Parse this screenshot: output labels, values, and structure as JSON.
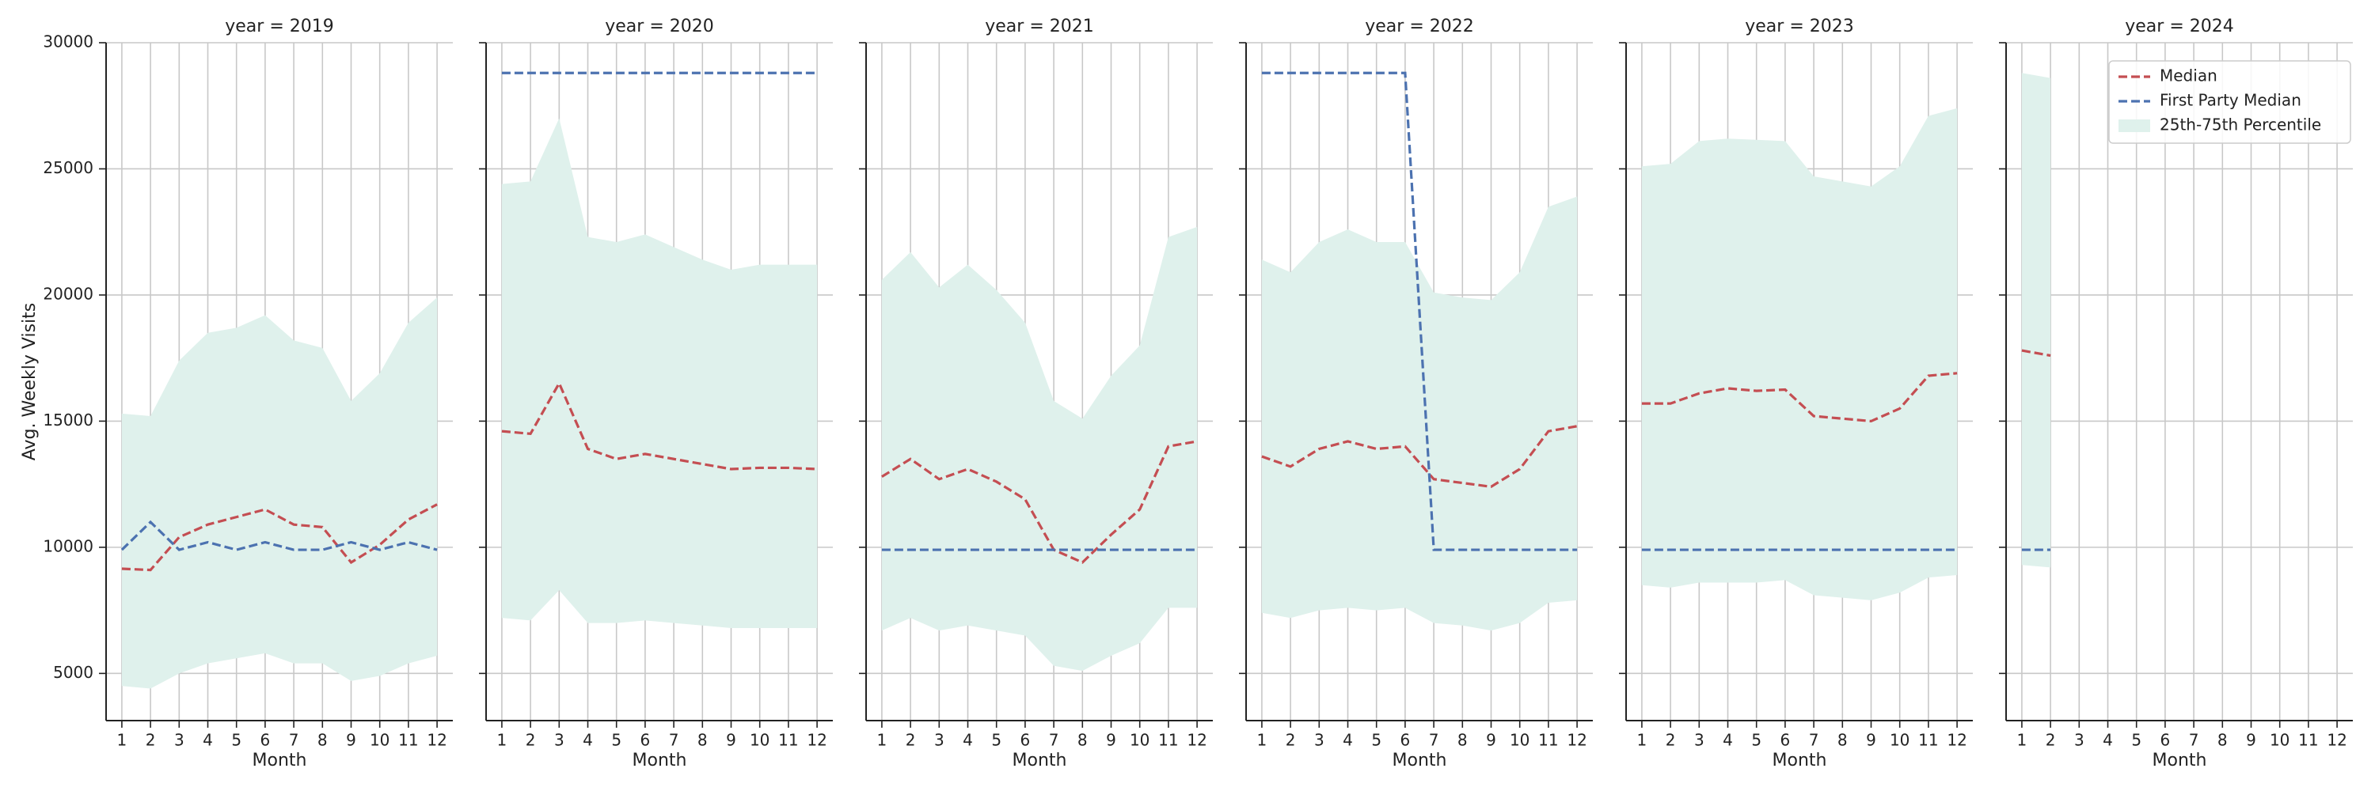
{
  "chart_data": [
    {
      "type": "line",
      "title": "year = 2019",
      "xlabel": "Month",
      "ylabel": "Avg. Weekly Visits",
      "x": [
        1,
        2,
        3,
        4,
        5,
        6,
        7,
        8,
        9,
        10,
        11,
        12
      ],
      "xlim": [
        0.45,
        12.55
      ],
      "xticks": [
        1,
        2,
        3,
        4,
        5,
        6,
        7,
        8,
        9,
        10,
        11,
        12
      ],
      "ylim": [
        3130,
        30000
      ],
      "yticks": [
        5000,
        10000,
        15000,
        20000,
        25000,
        30000
      ],
      "grid": true,
      "series": [
        {
          "color": "#c44e52",
          "linestyle": "dashed",
          "values": [
            9150,
            9100,
            10400,
            10900,
            11200,
            11500,
            10900,
            10800,
            9400,
            10100,
            11100,
            11700
          ]
        },
        {
          "color": "#4c72b0",
          "linestyle": "dashed",
          "values": [
            9900,
            11000,
            9900,
            10200,
            9900,
            10200,
            9900,
            9900,
            10200,
            9900,
            10200,
            9900
          ]
        },
        {
          "color": "#dff1ec",
          "lower": [
            4500,
            4400,
            5000,
            5400,
            5600,
            5800,
            5400,
            5400,
            4700,
            4900,
            5400,
            5700
          ],
          "upper": [
            15300,
            15200,
            17400,
            18500,
            18700,
            19200,
            18200,
            17900,
            15800,
            16900,
            18900,
            19900
          ]
        }
      ]
    },
    {
      "type": "line",
      "title": "year = 2020",
      "xlabel": "Month",
      "sharey": true,
      "x": [
        1,
        2,
        3,
        4,
        5,
        6,
        7,
        8,
        9,
        10,
        11,
        12
      ],
      "xlim": [
        0.45,
        12.55
      ],
      "xticks": [
        1,
        2,
        3,
        4,
        5,
        6,
        7,
        8,
        9,
        10,
        11,
        12
      ],
      "grid": true,
      "series": [
        {
          "color": "#c44e52",
          "linestyle": "dashed",
          "values": [
            14600,
            14500,
            16500,
            13900,
            13500,
            13700,
            13500,
            13300,
            13100,
            13150,
            13150,
            13100
          ]
        },
        {
          "color": "#4c72b0",
          "linestyle": "dashed",
          "values": [
            28800,
            28800,
            28800,
            28800,
            28800,
            28800,
            28800,
            28800,
            28800,
            28800,
            28800,
            28800
          ]
        },
        {
          "color": "#dff1ec",
          "lower": [
            7200,
            7100,
            8300,
            7000,
            7000,
            7100,
            7000,
            6900,
            6800,
            6800,
            6800,
            6800
          ],
          "upper": [
            24400,
            24500,
            27000,
            22300,
            22100,
            22400,
            21900,
            21400,
            21000,
            21200,
            21200,
            21200
          ]
        }
      ]
    },
    {
      "type": "line",
      "title": "year = 2021",
      "xlabel": "Month",
      "sharey": true,
      "x": [
        1,
        2,
        3,
        4,
        5,
        6,
        7,
        8,
        9,
        10,
        11,
        12
      ],
      "xlim": [
        0.45,
        12.55
      ],
      "xticks": [
        1,
        2,
        3,
        4,
        5,
        6,
        7,
        8,
        9,
        10,
        11,
        12
      ],
      "grid": true,
      "series": [
        {
          "color": "#c44e52",
          "linestyle": "dashed",
          "values": [
            12800,
            13500,
            12700,
            13100,
            12600,
            11900,
            9900,
            9400,
            10500,
            11500,
            14000,
            14200
          ]
        },
        {
          "color": "#4c72b0",
          "linestyle": "dashed",
          "values": [
            9900,
            9900,
            9900,
            9900,
            9900,
            9900,
            9900,
            9900,
            9900,
            9900,
            9900,
            9900
          ]
        },
        {
          "color": "#dff1ec",
          "lower": [
            6700,
            7200,
            6700,
            6900,
            6700,
            6500,
            5300,
            5100,
            5700,
            6200,
            7600,
            7600
          ],
          "upper": [
            20600,
            21700,
            20300,
            21200,
            20200,
            18900,
            15800,
            15100,
            16800,
            18000,
            22300,
            22700
          ]
        }
      ]
    },
    {
      "type": "line",
      "title": "year = 2022",
      "xlabel": "Month",
      "sharey": true,
      "x": [
        1,
        2,
        3,
        4,
        5,
        6,
        7,
        8,
        9,
        10,
        11,
        12
      ],
      "xlim": [
        0.45,
        12.55
      ],
      "xticks": [
        1,
        2,
        3,
        4,
        5,
        6,
        7,
        8,
        9,
        10,
        11,
        12
      ],
      "grid": true,
      "series": [
        {
          "color": "#c44e52",
          "linestyle": "dashed",
          "values": [
            13600,
            13200,
            13900,
            14200,
            13900,
            14000,
            12700,
            12550,
            12400,
            13100,
            14600,
            14800
          ]
        },
        {
          "color": "#4c72b0",
          "linestyle": "dashed",
          "values": [
            28800,
            28800,
            28800,
            28800,
            28800,
            28800,
            9900,
            9900,
            9900,
            9900,
            9900,
            9900
          ]
        },
        {
          "color": "#dff1ec",
          "lower": [
            7400,
            7200,
            7500,
            7600,
            7500,
            7600,
            7000,
            6900,
            6700,
            7000,
            7800,
            7900
          ],
          "upper": [
            21400,
            20900,
            22100,
            22600,
            22100,
            22100,
            20100,
            19900,
            19800,
            20900,
            23500,
            23900
          ]
        }
      ]
    },
    {
      "type": "line",
      "title": "year = 2023",
      "xlabel": "Month",
      "sharey": true,
      "x": [
        1,
        2,
        3,
        4,
        5,
        6,
        7,
        8,
        9,
        10,
        11,
        12
      ],
      "xlim": [
        0.45,
        12.55
      ],
      "xticks": [
        1,
        2,
        3,
        4,
        5,
        6,
        7,
        8,
        9,
        10,
        11,
        12
      ],
      "grid": true,
      "series": [
        {
          "color": "#c44e52",
          "linestyle": "dashed",
          "values": [
            15700,
            15700,
            16100,
            16300,
            16200,
            16250,
            15200,
            15100,
            15000,
            15500,
            16800,
            16900
          ]
        },
        {
          "color": "#4c72b0",
          "linestyle": "dashed",
          "values": [
            9900,
            9900,
            9900,
            9900,
            9900,
            9900,
            9900,
            9900,
            9900,
            9900,
            9900,
            9900
          ]
        },
        {
          "color": "#dff1ec",
          "lower": [
            8500,
            8400,
            8600,
            8600,
            8600,
            8700,
            8100,
            8000,
            7900,
            8200,
            8800,
            8900
          ],
          "upper": [
            25100,
            25200,
            26100,
            26200,
            26150,
            26100,
            24700,
            24500,
            24300,
            25100,
            27100,
            27400
          ]
        }
      ]
    },
    {
      "type": "line",
      "title": "year = 2024",
      "xlabel": "Month",
      "sharey": true,
      "legend": "upper right",
      "x": [
        1,
        2,
        3,
        4,
        5,
        6,
        7,
        8,
        9,
        10,
        11,
        12
      ],
      "xlim": [
        0.45,
        12.55
      ],
      "xticks": [
        1,
        2,
        3,
        4,
        5,
        6,
        7,
        8,
        9,
        10,
        11,
        12
      ],
      "grid": true,
      "series": [
        {
          "name": "Median",
          "color": "#c44e52",
          "linestyle": "dashed",
          "values": [
            17800,
            17600,
            null,
            null,
            null,
            null,
            null,
            null,
            null,
            null,
            null,
            null
          ]
        },
        {
          "name": "First Party Median",
          "color": "#4c72b0",
          "linestyle": "dashed",
          "values": [
            9900,
            9900,
            null,
            null,
            null,
            null,
            null,
            null,
            null,
            null,
            null,
            null
          ]
        },
        {
          "name": "25th-75th Percentile",
          "color": "#dff1ec",
          "lower": [
            9300,
            9200,
            null,
            null,
            null,
            null,
            null,
            null,
            null,
            null,
            null,
            null
          ],
          "upper": [
            28800,
            28600,
            null,
            null,
            null,
            null,
            null,
            null,
            null,
            null,
            null,
            null
          ]
        }
      ]
    }
  ]
}
